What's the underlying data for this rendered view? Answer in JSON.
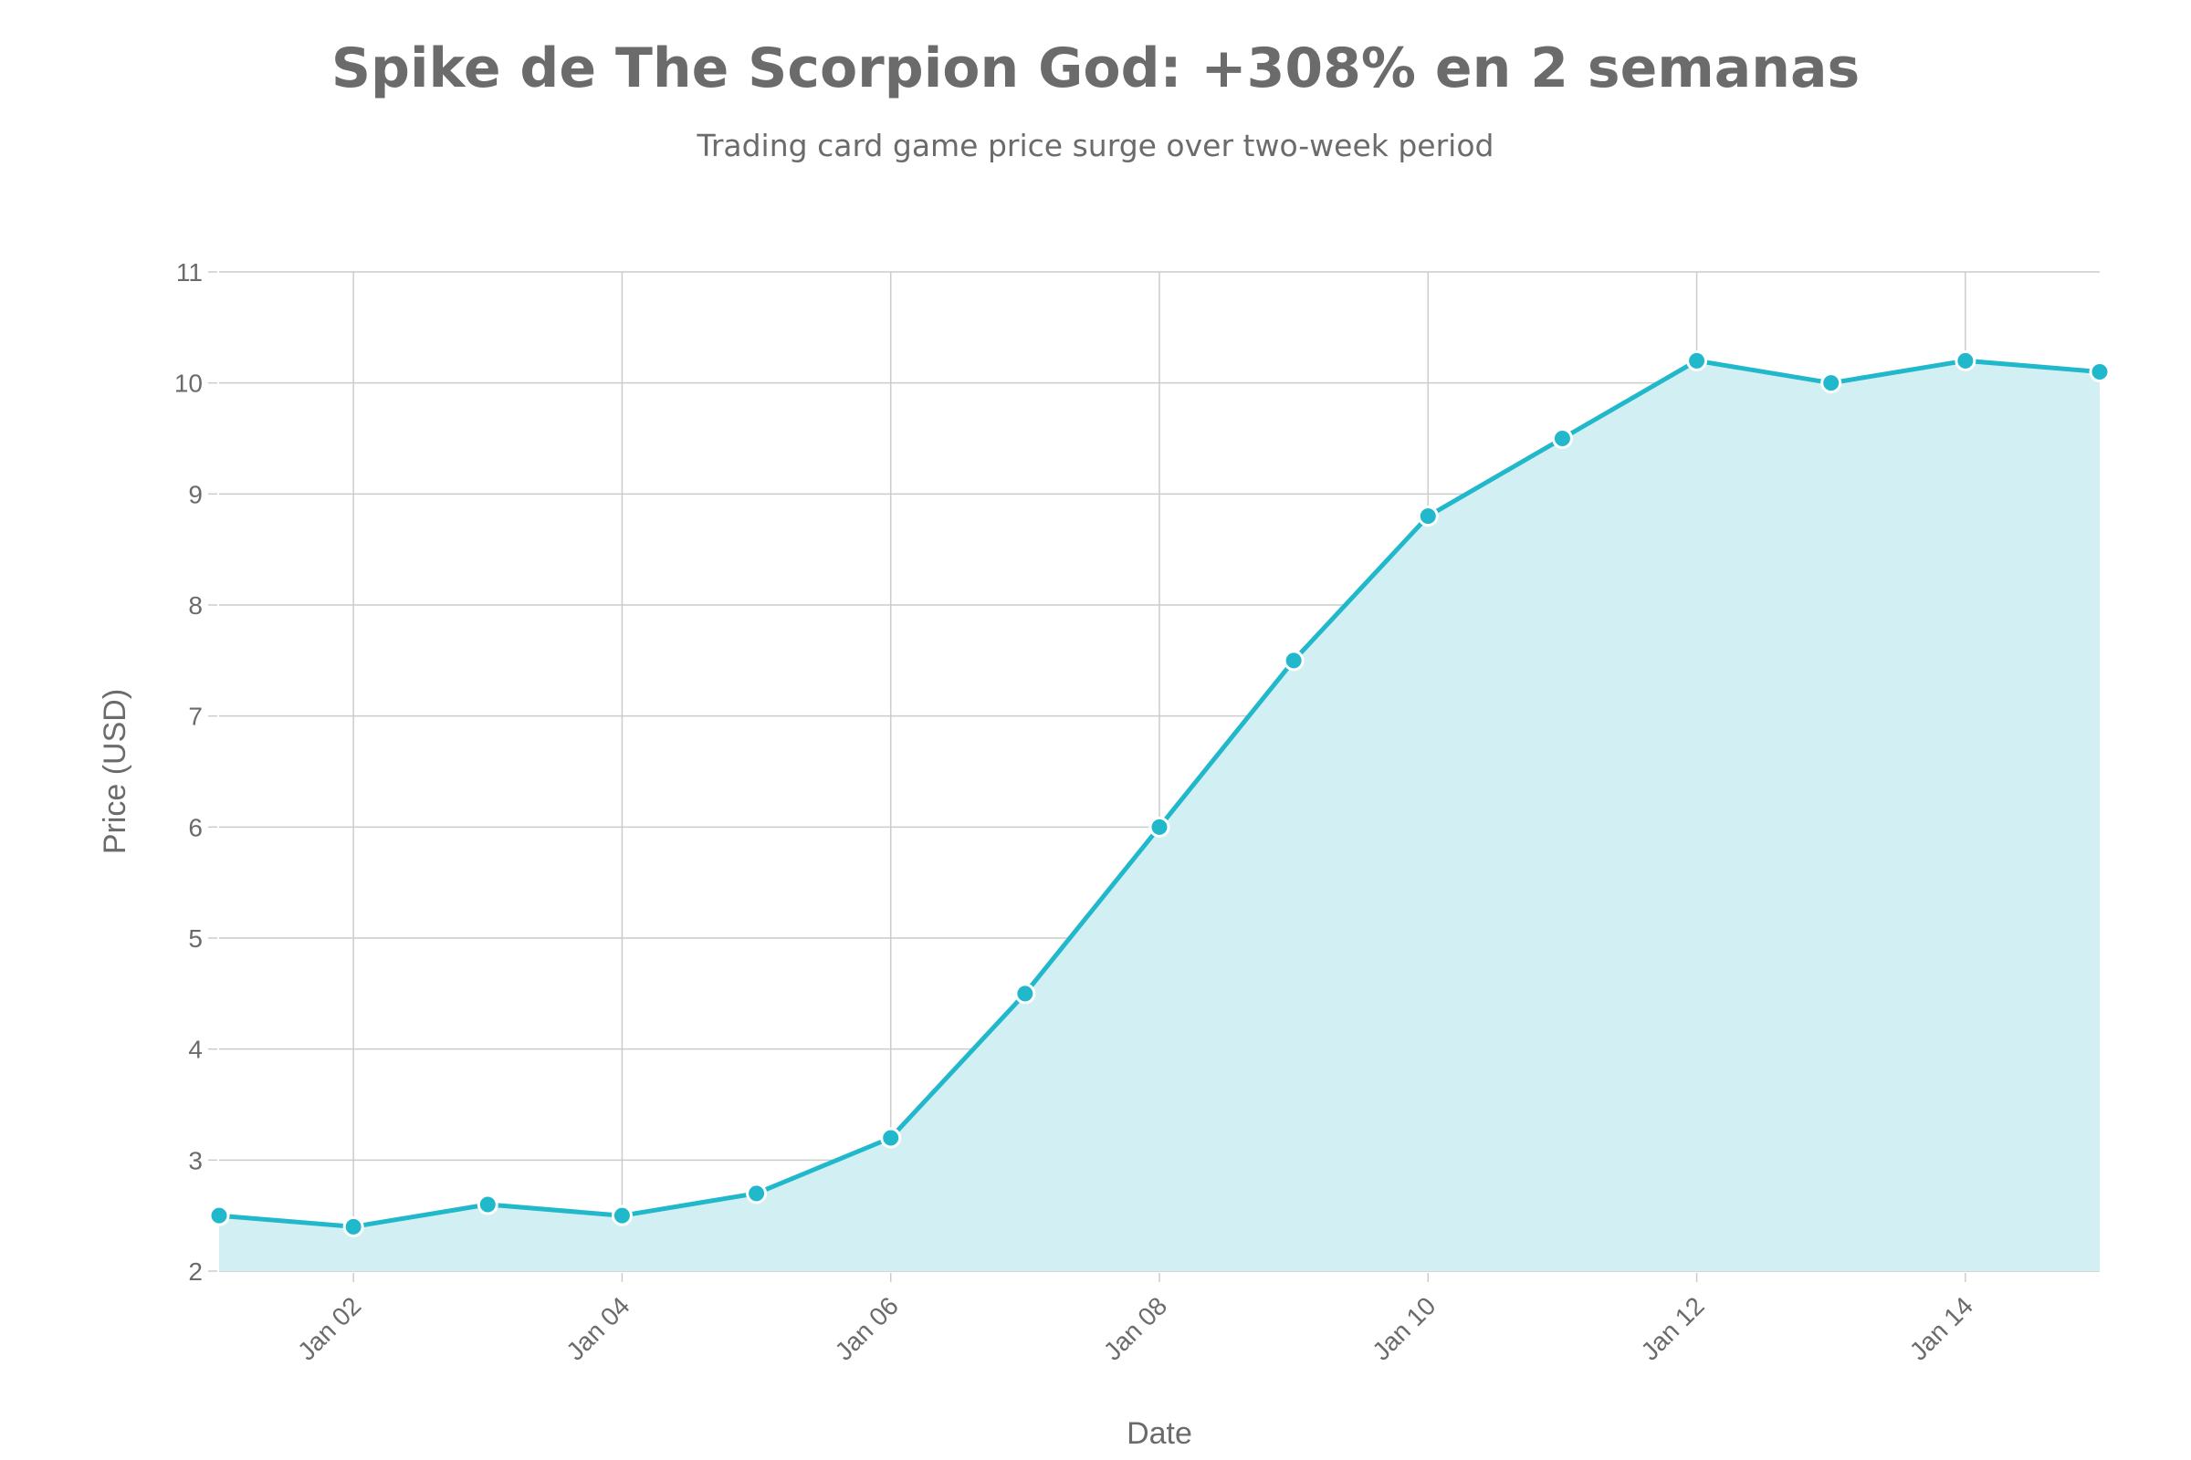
{
  "chart_data": {
    "type": "area",
    "title": "Spike de The Scorpion God: +308% en 2 semanas",
    "subtitle": "Trading card game price surge over two-week period",
    "xlabel": "Date",
    "ylabel": "Price (USD)",
    "x": [
      "2024-01-01",
      "2024-01-02",
      "2024-01-03",
      "2024-01-04",
      "2024-01-05",
      "2024-01-06",
      "2024-01-07",
      "2024-01-08",
      "2024-01-09",
      "2024-01-10",
      "2024-01-11",
      "2024-01-12",
      "2024-01-13",
      "2024-01-14",
      "2024-01-15"
    ],
    "values": [
      2.5,
      2.4,
      2.6,
      2.5,
      2.7,
      3.2,
      4.5,
      6.0,
      7.5,
      8.8,
      9.5,
      10.2,
      10.0,
      10.2,
      10.1
    ],
    "ylim": [
      2,
      11
    ],
    "yticks": [
      "2",
      "3",
      "4",
      "5",
      "6",
      "7",
      "8",
      "9",
      "10",
      "11"
    ],
    "xticks": [
      "Jan 02",
      "Jan 04",
      "Jan 06",
      "Jan 08",
      "Jan 10",
      "Jan 12",
      "Jan 14"
    ],
    "grid": true,
    "legend": "none",
    "colors": {
      "line": "#22b8cc",
      "fill": "#d2f0f3",
      "marker_stroke": "#ffffff",
      "grid": "#cccccc",
      "text": "#6b6b6b"
    }
  }
}
